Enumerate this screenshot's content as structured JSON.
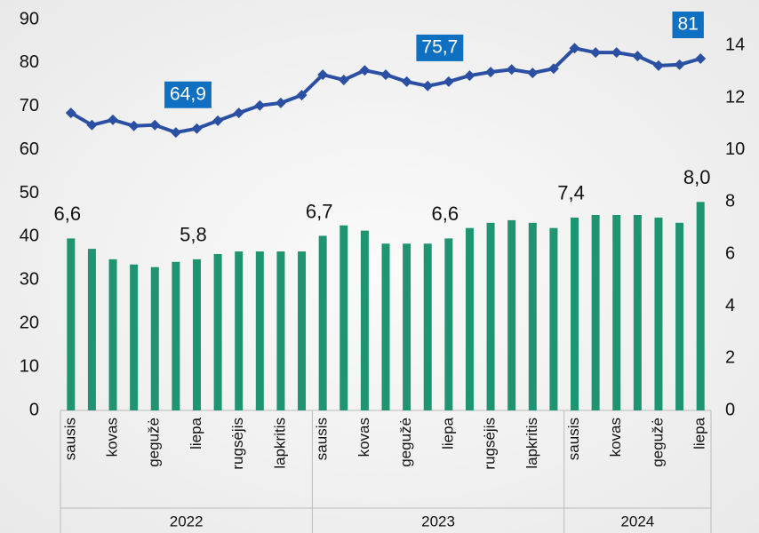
{
  "chart_data": {
    "type": "bar-line",
    "categories": [
      "sausis",
      null,
      "kovas",
      null,
      "gegužė",
      null,
      "liepa",
      null,
      "rugsėjis",
      null,
      "lapkritis",
      null,
      "sausis",
      null,
      "kovas",
      null,
      "gegužė",
      null,
      "liepa",
      null,
      "rugsėjis",
      null,
      "lapkritis",
      null,
      "sausis",
      null,
      "kovas",
      null,
      "gegužė",
      null,
      "liepa"
    ],
    "x_groups": [
      "2022",
      "2023",
      "2024"
    ],
    "series": [
      {
        "type": "bar",
        "axis": "y2",
        "color": "#1f9470",
        "values": [
          6.6,
          6.2,
          5.8,
          5.6,
          5.5,
          5.7,
          5.8,
          6.0,
          6.1,
          6.1,
          6.1,
          6.1,
          6.7,
          7.1,
          6.9,
          6.4,
          6.4,
          6.4,
          6.6,
          7.0,
          7.2,
          7.3,
          7.2,
          7.0,
          7.4,
          7.5,
          7.5,
          7.5,
          7.4,
          7.2,
          8.0
        ],
        "value_labels": [
          "6,6",
          null,
          null,
          null,
          null,
          null,
          "5,8",
          null,
          null,
          null,
          null,
          null,
          "6,7",
          null,
          null,
          null,
          null,
          null,
          "6,6",
          null,
          null,
          null,
          null,
          null,
          "7,4",
          null,
          null,
          null,
          null,
          null,
          "8,0"
        ]
      },
      {
        "type": "line",
        "axis": "y",
        "color": "#2a4fa3",
        "label_color": "#0f6fc0",
        "values": [
          68.5,
          65.7,
          66.9,
          65.5,
          65.7,
          64.0,
          64.9,
          66.7,
          68.5,
          70.2,
          70.8,
          72.6,
          77.3,
          76.1,
          78.3,
          77.3,
          75.7,
          74.7,
          75.7,
          77.1,
          77.9,
          78.5,
          77.7,
          78.7,
          83.4,
          82.4,
          82.4,
          81.6,
          79.4,
          79.6,
          81
        ],
        "value_labels": [
          null,
          null,
          null,
          null,
          null,
          null,
          "64,9",
          null,
          null,
          null,
          null,
          null,
          null,
          null,
          null,
          null,
          null,
          null,
          "75,7",
          null,
          null,
          null,
          null,
          null,
          null,
          null,
          null,
          null,
          null,
          null,
          "81"
        ]
      }
    ],
    "ylim": [
      0,
      90
    ],
    "yticks": [
      0,
      10,
      20,
      30,
      40,
      50,
      60,
      70,
      80,
      90
    ],
    "y2lim": [
      0,
      15
    ],
    "y2ticks": [
      0,
      2,
      4,
      6,
      8,
      10,
      12,
      14
    ]
  }
}
